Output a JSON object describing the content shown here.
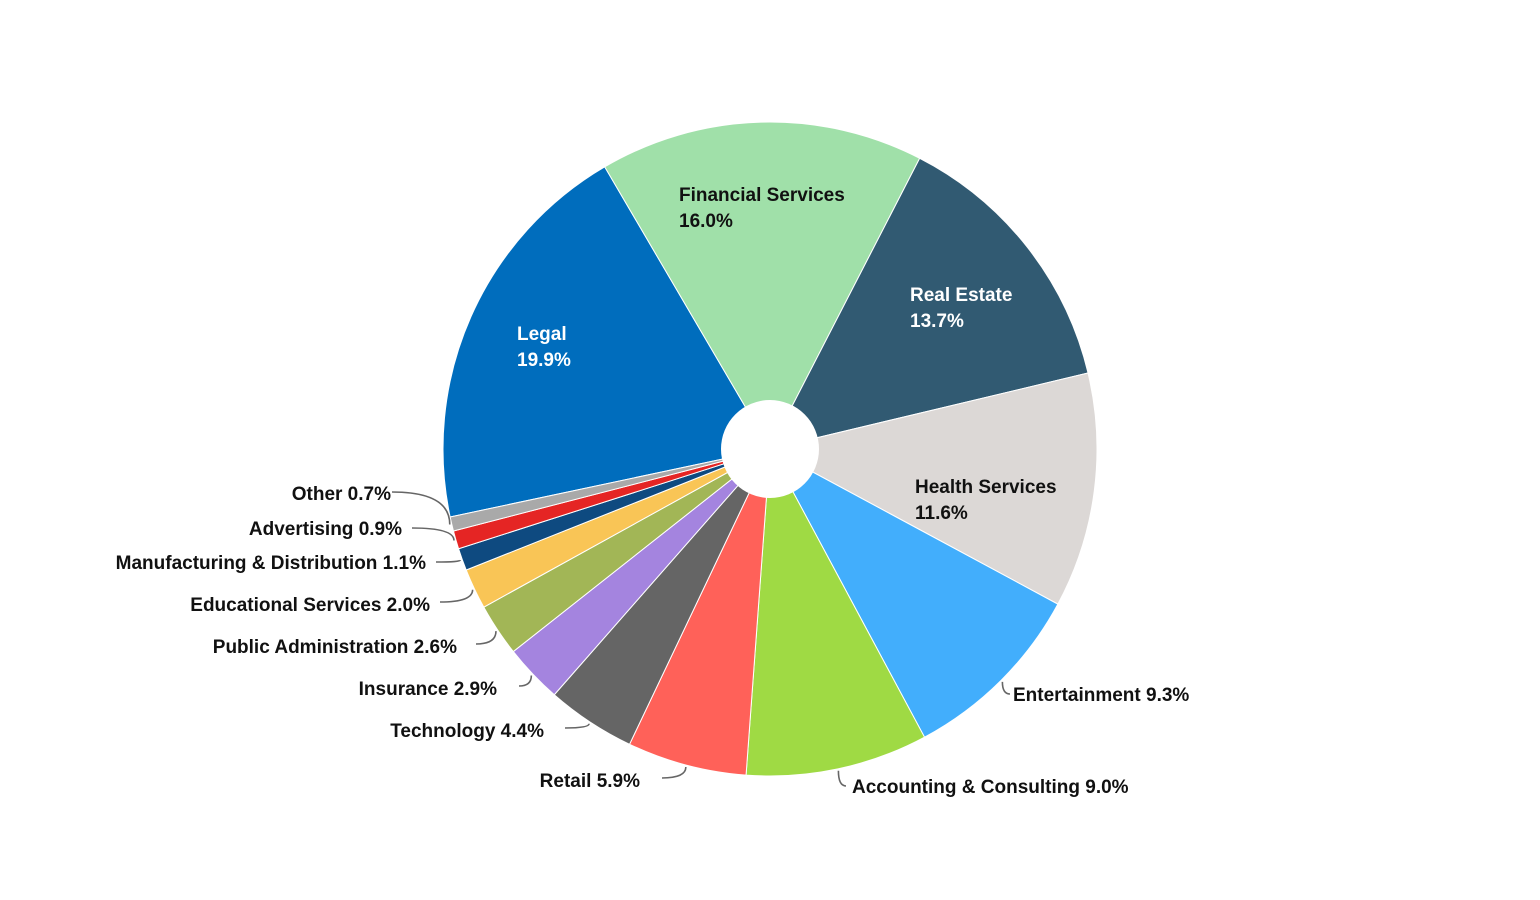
{
  "chart_data": {
    "type": "pie",
    "donut": true,
    "title": "",
    "start_angle_deg": 258,
    "direction": "clockwise",
    "slices": [
      {
        "label": "Legal",
        "value": 19.9,
        "text": "19.9%",
        "color": "#006dbd",
        "label_style": "inside",
        "label_color": "#ffffff"
      },
      {
        "label": "Financial Services",
        "value": 16.0,
        "text": "16.0%",
        "color": "#a0e0a9",
        "label_style": "inside",
        "label_color": "#111111"
      },
      {
        "label": "Real Estate",
        "value": 13.7,
        "text": "13.7%",
        "color": "#315a72",
        "label_style": "inside",
        "label_color": "#ffffff"
      },
      {
        "label": "Health Services",
        "value": 11.6,
        "text": "11.6%",
        "color": "#dcd8d6",
        "label_style": "inside",
        "label_color": "#111111"
      },
      {
        "label": "Entertainment",
        "value": 9.3,
        "text": "9.3%",
        "color": "#42aefc",
        "label_style": "outside",
        "label_color": "#111111"
      },
      {
        "label": "Accounting & Consulting",
        "value": 9.0,
        "text": "9.0%",
        "color": "#9fda44",
        "label_style": "outside",
        "label_color": "#111111"
      },
      {
        "label": "Retail",
        "value": 5.9,
        "text": "5.9%",
        "color": "#ff6159",
        "label_style": "outside",
        "label_color": "#111111"
      },
      {
        "label": "Technology",
        "value": 4.4,
        "text": "4.4%",
        "color": "#656565",
        "label_style": "outside",
        "label_color": "#111111"
      },
      {
        "label": "Insurance",
        "value": 2.9,
        "text": "2.9%",
        "color": "#a484df",
        "label_style": "outside",
        "label_color": "#111111"
      },
      {
        "label": "Public Administration",
        "value": 2.6,
        "text": "2.6%",
        "color": "#a2b656",
        "label_style": "outside",
        "label_color": "#111111"
      },
      {
        "label": "Educational Services",
        "value": 2.0,
        "text": "2.0%",
        "color": "#f9c556",
        "label_style": "outside",
        "label_color": "#111111"
      },
      {
        "label": "Manufacturing & Distribution",
        "value": 1.1,
        "text": "1.1%",
        "color": "#0e4a80",
        "label_style": "outside",
        "label_color": "#111111"
      },
      {
        "label": "Advertising",
        "value": 0.9,
        "text": "0.9%",
        "color": "#e52524",
        "label_style": "outside",
        "label_color": "#111111"
      },
      {
        "label": "Other",
        "value": 0.7,
        "text": "0.7%",
        "color": "#a9a9a9",
        "label_style": "outside",
        "label_color": "#111111"
      }
    ]
  }
}
